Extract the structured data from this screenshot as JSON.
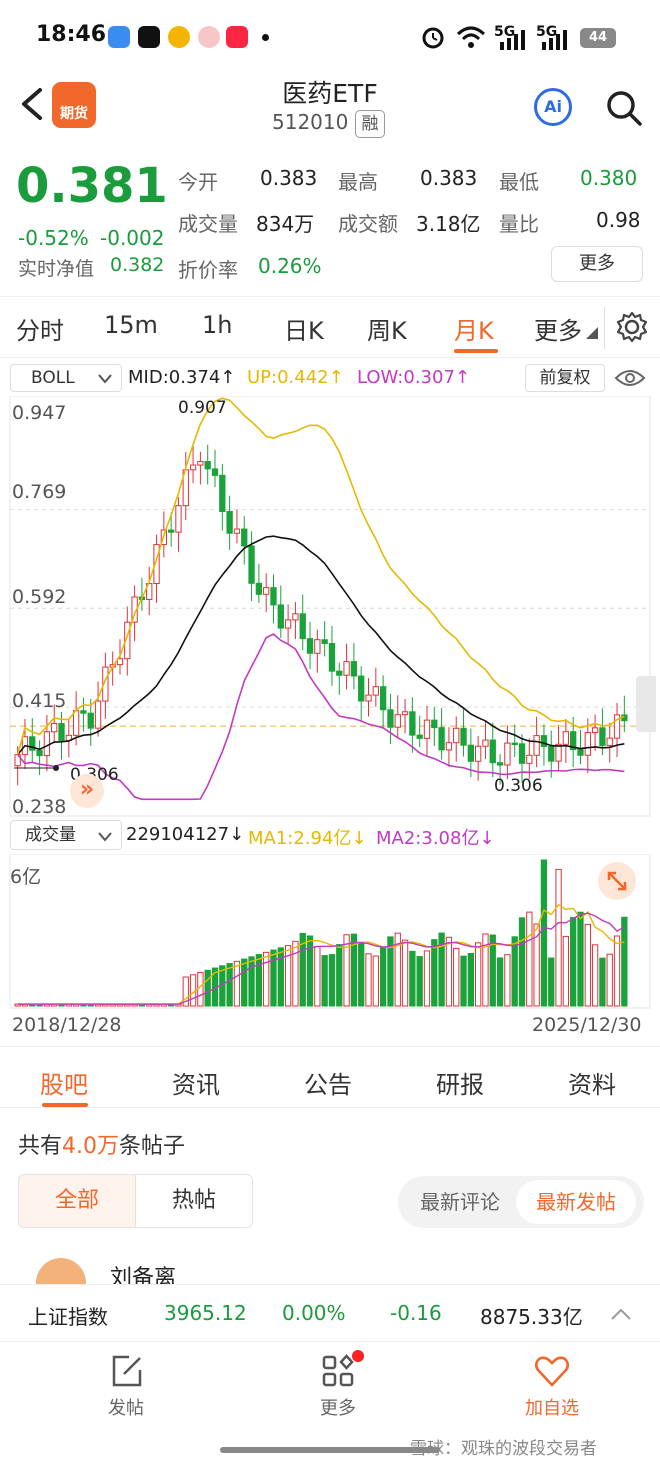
{
  "status": {
    "time": "18:46",
    "signal1": "5G",
    "signal2": "5G",
    "battery": "44"
  },
  "header": {
    "logo_text": "期货",
    "title": "医药ETF",
    "code": "512010",
    "badge": "融",
    "ai_label": "Ai"
  },
  "quote": {
    "price": "0.381",
    "pct": "-0.52%",
    "chg": "-0.002",
    "nav_label": "实时净值",
    "nav_value": "0.382",
    "discount_label": "折价率",
    "discount_value": "0.26%",
    "open_label": "今开",
    "open": "0.383",
    "high_label": "最高",
    "high": "0.383",
    "low_label": "最低",
    "low": "0.380",
    "vol_label": "成交量",
    "vol": "834万",
    "amt_label": "成交额",
    "amt": "3.18亿",
    "ratio_label": "量比",
    "ratio": "0.98",
    "more": "更多"
  },
  "period_tabs": [
    "分时",
    "15m",
    "1h",
    "日K",
    "周K",
    "月K",
    "更多"
  ],
  "indicator": {
    "name": "BOLL",
    "mid": "MID:0.374↑",
    "up": "UP:0.442↑",
    "low": "LOW:0.307↑",
    "adjust": "前复权"
  },
  "chart_data": {
    "type": "candlestick",
    "y_ticks": [
      "0.947",
      "0.769",
      "0.592",
      "0.415",
      "0.238"
    ],
    "ylim": [
      0.238,
      0.947
    ],
    "high_annotation": "0.907",
    "low_annotation_left": "0.306",
    "low_annotation_right": "0.306",
    "x_start": "2018/12/28",
    "x_end": "2025/12/30",
    "last_price_line": 0.381,
    "volume_label": "成交量",
    "volume_value": "229104127↓",
    "ma1": "MA1:2.94亿↓",
    "ma2": "MA2:3.08亿↓",
    "volume_axis": "6亿",
    "colors": {
      "up": "#e0323a",
      "down": "#1aa33a",
      "mid": "#111111",
      "upper": "#e6b800",
      "lower": "#c23ac2"
    }
  },
  "content_tabs": [
    "股吧",
    "资讯",
    "公告",
    "研报",
    "资料"
  ],
  "posts": {
    "prefix": "共有",
    "count": "4.0万",
    "suffix": "条帖子",
    "filter_all": "全部",
    "filter_hot": "热帖",
    "sort_comment": "最新评论",
    "sort_post": "最新发帖",
    "first_author": "刘备离"
  },
  "ticker": {
    "name": "上证指数",
    "value": "3965.12",
    "pct": "0.00%",
    "chg": "-0.16",
    "amount": "8875.33亿"
  },
  "nav": {
    "post": "发帖",
    "more": "更多",
    "add": "加自选"
  },
  "watermark": "雪球：观珠的波段交易者"
}
